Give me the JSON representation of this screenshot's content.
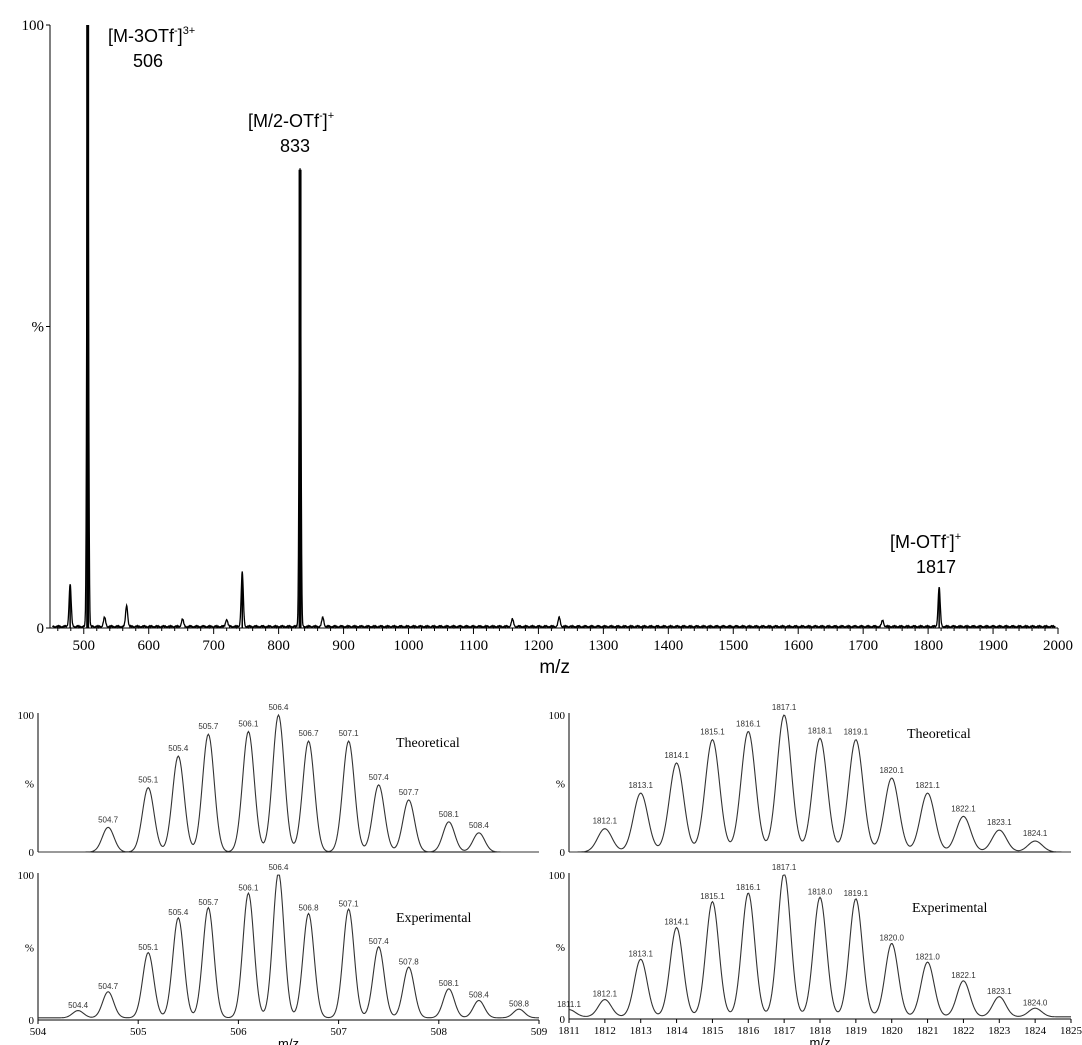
{
  "chart_data": [
    {
      "type": "line",
      "xlabel": "m/z",
      "ylabel": "%",
      "xlim": [
        448,
        2000
      ],
      "ylim": [
        0,
        100
      ],
      "xticks": [
        500,
        600,
        700,
        800,
        900,
        1000,
        1100,
        1200,
        1300,
        1400,
        1500,
        1600,
        1700,
        1800,
        1900,
        2000
      ],
      "yticks": [
        {
          "value": 0,
          "label": "0"
        },
        {
          "value": 50,
          "label": "%"
        },
        {
          "value": 100,
          "label": "100"
        }
      ],
      "peaks": [
        {
          "mz": 479,
          "intensity": 7
        },
        {
          "mz": 506,
          "intensity": 100
        },
        {
          "mz": 532,
          "intensity": 1.5
        },
        {
          "mz": 566,
          "intensity": 3.5
        },
        {
          "mz": 652,
          "intensity": 1.2
        },
        {
          "mz": 720,
          "intensity": 1.2
        },
        {
          "mz": 744,
          "intensity": 9
        },
        {
          "mz": 833,
          "intensity": 76
        },
        {
          "mz": 868,
          "intensity": 1.5
        },
        {
          "mz": 1160,
          "intensity": 1.2
        },
        {
          "mz": 1232,
          "intensity": 1.5
        },
        {
          "mz": 1730,
          "intensity": 1
        },
        {
          "mz": 1817,
          "intensity": 6.5
        }
      ],
      "annotations": [
        {
          "label": "[M-3OTf",
          "sup1": "-",
          "close": "]",
          "sup2": "3+",
          "value": "506",
          "mz": 506
        },
        {
          "label": "[M/2-OTf",
          "sup1": "-",
          "close": "]",
          "sup2": "+",
          "value": "833",
          "mz": 833
        },
        {
          "label": "[M-OTf",
          "sup1": "-",
          "close": "]",
          "sup2": "+",
          "value": "1817",
          "mz": 1817
        }
      ]
    },
    {
      "type": "line",
      "label": "Theoretical",
      "xlim": [
        504,
        509
      ],
      "ylim": [
        0,
        100
      ],
      "yticks": [
        "0",
        "%",
        "100"
      ],
      "peaks": [
        {
          "x": 504.7,
          "y": 18,
          "label": "504.7"
        },
        {
          "x": 505.1,
          "y": 47,
          "label": "505.1"
        },
        {
          "x": 505.4,
          "y": 70,
          "label": "505.4"
        },
        {
          "x": 505.7,
          "y": 86,
          "label": "505.7"
        },
        {
          "x": 506.1,
          "y": 88,
          "label": "506.1"
        },
        {
          "x": 506.4,
          "y": 100,
          "label": "506.4"
        },
        {
          "x": 506.7,
          "y": 81,
          "label": "506.7"
        },
        {
          "x": 507.1,
          "y": 81,
          "label": "507.1"
        },
        {
          "x": 507.4,
          "y": 49,
          "label": "507.4"
        },
        {
          "x": 507.7,
          "y": 38,
          "label": "507.7"
        },
        {
          "x": 508.1,
          "y": 22,
          "label": "508.1"
        },
        {
          "x": 508.4,
          "y": 14,
          "label": "508.4"
        }
      ]
    },
    {
      "type": "line",
      "label": "Experimental",
      "xlim": [
        504,
        509
      ],
      "ylim": [
        0,
        100
      ],
      "xticks": [
        "504",
        "505",
        "506",
        "507",
        "508",
        "509"
      ],
      "yticks": [
        "0",
        "%",
        "100"
      ],
      "xlabel": "m/z",
      "peaks": [
        {
          "x": 504.4,
          "y": 5,
          "label": "504.4"
        },
        {
          "x": 504.7,
          "y": 18,
          "label": "504.7"
        },
        {
          "x": 505.1,
          "y": 45,
          "label": "505.1"
        },
        {
          "x": 505.4,
          "y": 69,
          "label": "505.4"
        },
        {
          "x": 505.7,
          "y": 76,
          "label": "505.7"
        },
        {
          "x": 506.1,
          "y": 86,
          "label": "506.1"
        },
        {
          "x": 506.4,
          "y": 100,
          "label": "506.4"
        },
        {
          "x": 506.7,
          "y": 72,
          "label": "506.8"
        },
        {
          "x": 507.1,
          "y": 75,
          "label": "507.1"
        },
        {
          "x": 507.4,
          "y": 49,
          "label": "507.4"
        },
        {
          "x": 507.7,
          "y": 35,
          "label": "507.8"
        },
        {
          "x": 508.1,
          "y": 20,
          "label": "508.1"
        },
        {
          "x": 508.4,
          "y": 12,
          "label": "508.4"
        },
        {
          "x": 508.8,
          "y": 6,
          "label": "508.8"
        }
      ]
    },
    {
      "type": "line",
      "label": "Theoretical",
      "xlim": [
        1811,
        1825
      ],
      "ylim": [
        0,
        100
      ],
      "yticks": [
        "0",
        "%",
        "100"
      ],
      "peaks": [
        {
          "x": 1812,
          "y": 17,
          "label": "1812.1"
        },
        {
          "x": 1813,
          "y": 43,
          "label": "1813.1"
        },
        {
          "x": 1814,
          "y": 65,
          "label": "1814.1"
        },
        {
          "x": 1815,
          "y": 82,
          "label": "1815.1"
        },
        {
          "x": 1816,
          "y": 88,
          "label": "1816.1"
        },
        {
          "x": 1817,
          "y": 100,
          "label": "1817.1"
        },
        {
          "x": 1818,
          "y": 83,
          "label": "1818.1"
        },
        {
          "x": 1819,
          "y": 82,
          "label": "1819.1"
        },
        {
          "x": 1820,
          "y": 54,
          "label": "1820.1"
        },
        {
          "x": 1821,
          "y": 43,
          "label": "1821.1"
        },
        {
          "x": 1822,
          "y": 26,
          "label": "1822.1"
        },
        {
          "x": 1823,
          "y": 16,
          "label": "1823.1"
        },
        {
          "x": 1824,
          "y": 8,
          "label": "1824.1"
        }
      ]
    },
    {
      "type": "line",
      "label": "Experimental",
      "xlim": [
        1811,
        1825
      ],
      "ylim": [
        0,
        100
      ],
      "xticks": [
        "1811",
        "1812",
        "1813",
        "1814",
        "1815",
        "1816",
        "1817",
        "1818",
        "1819",
        "1820",
        "1821",
        "1822",
        "1823",
        "1824",
        "1825"
      ],
      "yticks": [
        "0",
        "%",
        "100"
      ],
      "xlabel": "m/z",
      "peaks": [
        {
          "x": 1811,
          "y": 5,
          "label": "1811.1"
        },
        {
          "x": 1812,
          "y": 12,
          "label": "1812.1"
        },
        {
          "x": 1813,
          "y": 40,
          "label": "1813.1"
        },
        {
          "x": 1814,
          "y": 62,
          "label": "1814.1"
        },
        {
          "x": 1815,
          "y": 80,
          "label": "1815.1"
        },
        {
          "x": 1816,
          "y": 86,
          "label": "1816.1"
        },
        {
          "x": 1817,
          "y": 100,
          "label": "1817.1"
        },
        {
          "x": 1818,
          "y": 83,
          "label": "1818.0"
        },
        {
          "x": 1819,
          "y": 82,
          "label": "1819.1"
        },
        {
          "x": 1820,
          "y": 51,
          "label": "1820.0"
        },
        {
          "x": 1821,
          "y": 38,
          "label": "1821.0"
        },
        {
          "x": 1822,
          "y": 25,
          "label": "1822.1"
        },
        {
          "x": 1823,
          "y": 14,
          "label": "1823.1"
        },
        {
          "x": 1824,
          "y": 6,
          "label": "1824.0"
        }
      ]
    }
  ]
}
